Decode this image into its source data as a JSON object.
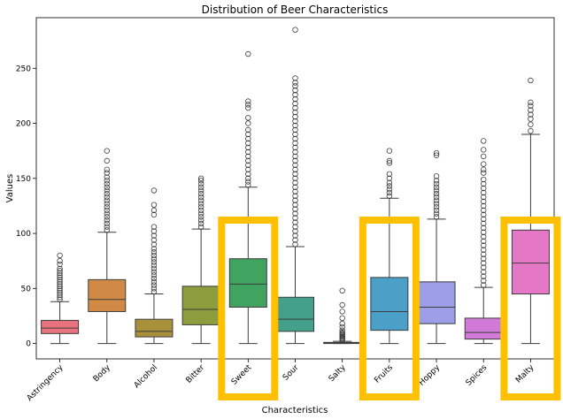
{
  "chart_data": {
    "type": "box",
    "title": "Distribution of Beer Characteristics",
    "xlabel": "Characteristics",
    "ylabel": "Values",
    "ylim": [
      -14,
      296
    ],
    "yticks": [
      0,
      50,
      100,
      150,
      200,
      250
    ],
    "grid": false,
    "legend": "none",
    "categories": [
      "Astringency",
      "Body",
      "Alcohol",
      "Bitter",
      "Sweet",
      "Sour",
      "Salty",
      "Fruits",
      "Hoppy",
      "Spices",
      "Malty"
    ],
    "colors": [
      "#e8737e",
      "#d08a45",
      "#a9913c",
      "#8d9c3c",
      "#41a360",
      "#44a08a",
      "#469b9f",
      "#4ba0c8",
      "#9c9ee8",
      "#d17ad8",
      "#e478c6"
    ],
    "highlighted": [
      "Sweet",
      "Fruits",
      "Malty"
    ],
    "highlight_color": "#ffc000",
    "boxes": [
      {
        "min": 0,
        "q1": 9,
        "median": 14,
        "q3": 21,
        "max": 38,
        "outliers": [
          40,
          42,
          44,
          46,
          48,
          50,
          52,
          54,
          56,
          58,
          60,
          62,
          64,
          66,
          68,
          72,
          75,
          80
        ]
      },
      {
        "min": 0,
        "q1": 29,
        "median": 40,
        "q3": 58,
        "max": 101,
        "outliers": [
          103,
          106,
          109,
          112,
          115,
          118,
          121,
          124,
          127,
          130,
          133,
          136,
          139,
          142,
          145,
          148,
          151,
          155,
          158,
          166,
          175
        ]
      },
      {
        "min": 0,
        "q1": 6,
        "median": 11,
        "q3": 22,
        "max": 45,
        "outliers": [
          47,
          50,
          53,
          56,
          59,
          62,
          65,
          68,
          71,
          74,
          77,
          80,
          83,
          86,
          90,
          94,
          98,
          102,
          106,
          117,
          121,
          126,
          139
        ]
      },
      {
        "min": 0,
        "q1": 17,
        "median": 31,
        "q3": 52,
        "max": 104,
        "outliers": [
          106,
          109,
          112,
          115,
          118,
          121,
          124,
          127,
          130,
          133,
          136,
          139,
          142,
          145,
          148,
          150
        ]
      },
      {
        "min": 0,
        "q1": 33,
        "median": 54,
        "q3": 77,
        "max": 142,
        "outliers": [
          144,
          147,
          150,
          154,
          158,
          162,
          166,
          170,
          174,
          178,
          182,
          186,
          190,
          194,
          200,
          205,
          214,
          217,
          220,
          263
        ]
      },
      {
        "min": 0,
        "q1": 11,
        "median": 22,
        "q3": 42,
        "max": 88,
        "outliers": [
          90,
          94,
          98,
          102,
          106,
          110,
          114,
          118,
          122,
          126,
          130,
          134,
          138,
          142,
          146,
          150,
          154,
          158,
          162,
          166,
          170,
          174,
          178,
          182,
          186,
          190,
          194,
          198,
          202,
          206,
          210,
          214,
          218,
          222,
          226,
          230,
          234,
          237,
          241,
          285
        ]
      },
      {
        "min": 0,
        "q1": 0,
        "median": 0.5,
        "q3": 1,
        "max": 2,
        "outliers": [
          3,
          4,
          5,
          6,
          7,
          8,
          9,
          10,
          12,
          15,
          18,
          23,
          29,
          35,
          48
        ]
      },
      {
        "min": 0,
        "q1": 12,
        "median": 29,
        "q3": 60,
        "max": 132,
        "outliers": [
          134,
          137,
          140,
          143,
          146,
          150,
          154,
          164,
          166,
          175
        ]
      },
      {
        "min": 0,
        "q1": 18,
        "median": 33,
        "q3": 56,
        "max": 113,
        "outliers": [
          115,
          118,
          121,
          124,
          127,
          130,
          133,
          136,
          139,
          142,
          145,
          148,
          152,
          171,
          173
        ]
      },
      {
        "min": 0,
        "q1": 4,
        "median": 10,
        "q3": 23,
        "max": 51,
        "outliers": [
          53,
          57,
          61,
          65,
          69,
          73,
          77,
          81,
          85,
          89,
          93,
          97,
          101,
          105,
          109,
          113,
          117,
          121,
          125,
          129,
          133,
          137,
          141,
          145,
          149,
          155,
          158,
          163,
          170,
          176,
          184
        ]
      },
      {
        "min": 0,
        "q1": 45,
        "median": 73,
        "q3": 103,
        "max": 190,
        "outliers": [
          193,
          199,
          204,
          208,
          212,
          216,
          219,
          239
        ]
      }
    ]
  }
}
